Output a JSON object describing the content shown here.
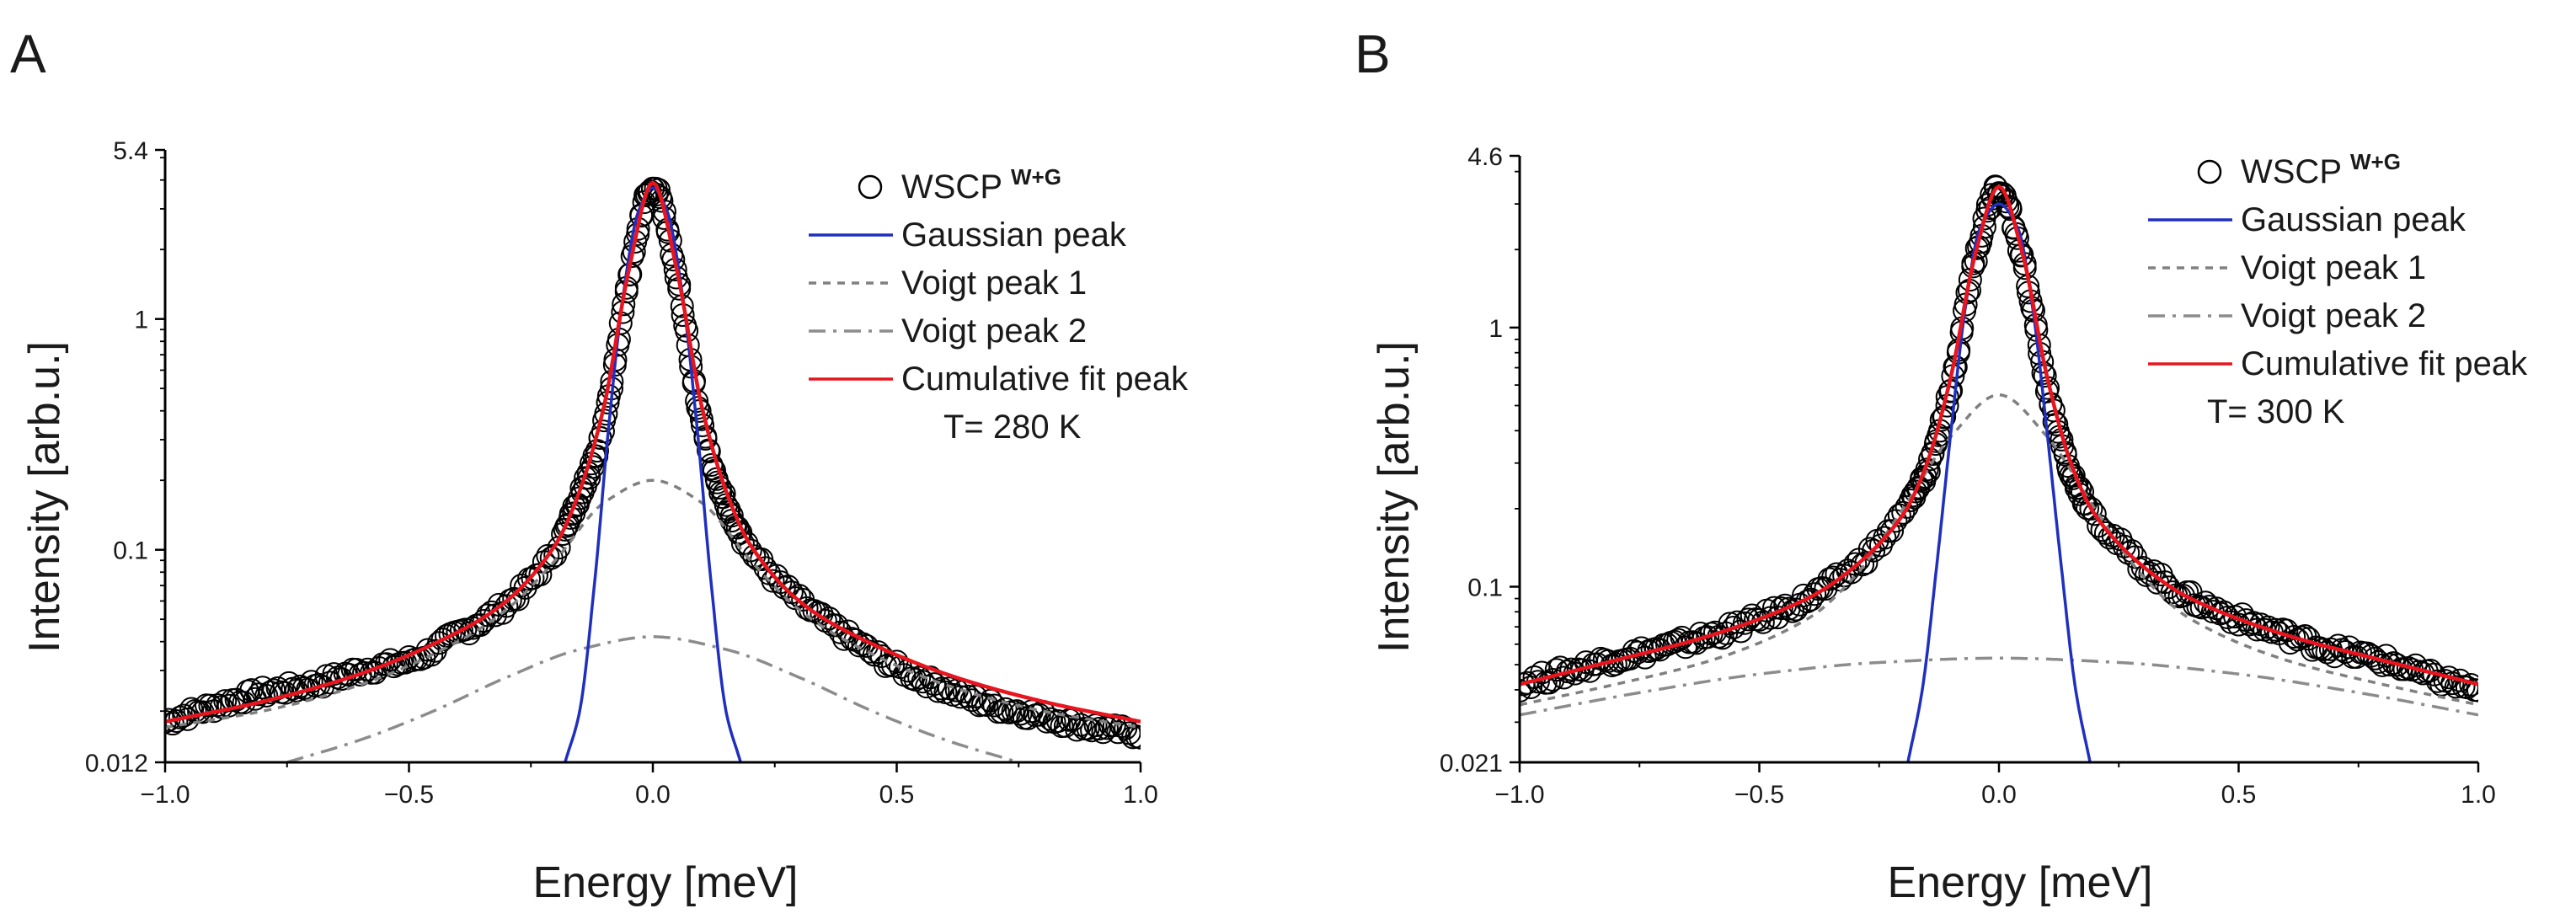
{
  "colors": {
    "data": "#000000",
    "gaussian": "#1f2fbf",
    "voigt1": "#808080",
    "voigt2": "#8c8c8c",
    "cumulative": "#e8141e"
  },
  "chart_data": [
    {
      "panel": "A",
      "type": "line",
      "title": "",
      "xlabel": "Energy [meV]",
      "ylabel": "Intensity [arb.u.]",
      "xlim": [
        -1.0,
        1.0
      ],
      "ylim": [
        0.012,
        5.4
      ],
      "yscale": "log",
      "xticks": [
        -1.0,
        -0.5,
        0.0,
        0.5,
        1.0
      ],
      "xtick_labels": [
        "−1.0",
        "−0.5",
        "0.0",
        "0.5",
        "1.0"
      ],
      "yticks": [
        0.012,
        0.1,
        1,
        5.4
      ],
      "ytick_labels": [
        "0.012",
        "0.1",
        "1",
        "5.4"
      ],
      "legend": {
        "placement": "top-right",
        "data_label": "WSCP",
        "data_sup": "W+G",
        "entries": [
          "Gaussian peak",
          "Voigt peak 1",
          "Voigt peak 2",
          "Cumulative fit peak"
        ],
        "note": "T= 280 K"
      },
      "series": [
        {
          "name": "WSCP W+G",
          "style": "markers",
          "x": [
            -1.0,
            -0.9,
            -0.8,
            -0.7,
            -0.6,
            -0.5,
            -0.4,
            -0.3,
            -0.2,
            -0.15,
            -0.1,
            -0.05,
            0.0,
            0.05,
            0.1,
            0.15,
            0.2,
            0.3,
            0.4,
            0.5,
            0.6,
            0.7,
            0.8,
            0.9,
            1.0
          ],
          "y": [
            0.018,
            0.021,
            0.024,
            0.026,
            0.03,
            0.033,
            0.043,
            0.058,
            0.1,
            0.17,
            0.35,
            1.5,
            3.8,
            1.5,
            0.35,
            0.16,
            0.1,
            0.06,
            0.042,
            0.031,
            0.025,
            0.021,
            0.019,
            0.017,
            0.016
          ]
        },
        {
          "name": "Gaussian peak",
          "style": "solid",
          "x": [
            -0.18,
            -0.15,
            -0.12,
            -0.09,
            -0.06,
            -0.03,
            0.0,
            0.03,
            0.06,
            0.09,
            0.12,
            0.15,
            0.18
          ],
          "y": [
            0.012,
            0.02,
            0.07,
            0.35,
            1.3,
            2.9,
            3.7,
            2.9,
            1.3,
            0.35,
            0.07,
            0.02,
            0.012
          ]
        },
        {
          "name": "Voigt peak 1",
          "style": "dotted",
          "x": [
            -1.0,
            -0.8,
            -0.6,
            -0.4,
            -0.3,
            -0.2,
            -0.1,
            0.0,
            0.1,
            0.2,
            0.3,
            0.4,
            0.6,
            0.8,
            1.0
          ],
          "y": [
            0.017,
            0.02,
            0.026,
            0.04,
            0.055,
            0.09,
            0.16,
            0.2,
            0.16,
            0.09,
            0.055,
            0.04,
            0.026,
            0.02,
            0.017
          ]
        },
        {
          "name": "Voigt peak 2",
          "style": "dashdot",
          "x": [
            -0.75,
            -0.6,
            -0.45,
            -0.3,
            -0.15,
            0.0,
            0.15,
            0.3,
            0.45,
            0.6,
            0.75
          ],
          "y": [
            0.012,
            0.015,
            0.02,
            0.028,
            0.037,
            0.042,
            0.037,
            0.028,
            0.02,
            0.015,
            0.012
          ]
        },
        {
          "name": "Cumulative fit peak",
          "style": "solid",
          "x": [
            -1.0,
            -0.8,
            -0.6,
            -0.4,
            -0.3,
            -0.2,
            -0.15,
            -0.1,
            -0.05,
            0.0,
            0.05,
            0.1,
            0.15,
            0.2,
            0.3,
            0.4,
            0.6,
            0.8,
            1.0
          ],
          "y": [
            0.018,
            0.022,
            0.029,
            0.044,
            0.06,
            0.105,
            0.18,
            0.42,
            1.6,
            3.9,
            1.6,
            0.42,
            0.18,
            0.105,
            0.06,
            0.044,
            0.029,
            0.022,
            0.018
          ]
        }
      ]
    },
    {
      "panel": "B",
      "type": "line",
      "title": "",
      "xlabel": "Energy [meV]",
      "ylabel": "Intensity [arb.u.]",
      "xlim": [
        -1.0,
        1.0
      ],
      "ylim": [
        0.021,
        4.6
      ],
      "yscale": "log",
      "xticks": [
        -1.0,
        -0.5,
        0.0,
        0.5,
        1.0
      ],
      "xtick_labels": [
        "−1.0",
        "−0.5",
        "0.0",
        "0.5",
        "1.0"
      ],
      "yticks": [
        0.021,
        0.1,
        1,
        4.6
      ],
      "ytick_labels": [
        "0.021",
        "0.1",
        "1",
        "4.6"
      ],
      "legend": {
        "placement": "top-right",
        "data_label": "WSCP",
        "data_sup": "W+G",
        "entries": [
          "Gaussian peak",
          "Voigt peak 1",
          "Voigt peak 2",
          "Cumulative fit peak"
        ],
        "note": "T= 300 K"
      },
      "series": [
        {
          "name": "WSCP W+G",
          "style": "markers",
          "x": [
            -1.0,
            -0.9,
            -0.8,
            -0.7,
            -0.6,
            -0.5,
            -0.4,
            -0.3,
            -0.2,
            -0.15,
            -0.1,
            -0.05,
            0.0,
            0.05,
            0.1,
            0.15,
            0.2,
            0.3,
            0.4,
            0.5,
            0.6,
            0.7,
            0.8,
            0.9,
            1.0
          ],
          "y": [
            0.042,
            0.047,
            0.053,
            0.058,
            0.065,
            0.075,
            0.09,
            0.12,
            0.19,
            0.28,
            0.6,
            1.8,
            3.4,
            1.8,
            0.6,
            0.28,
            0.19,
            0.12,
            0.09,
            0.075,
            0.065,
            0.057,
            0.052,
            0.045,
            0.04
          ]
        },
        {
          "name": "Gaussian peak",
          "style": "solid",
          "x": [
            -0.19,
            -0.16,
            -0.13,
            -0.1,
            -0.07,
            -0.04,
            0.0,
            0.04,
            0.07,
            0.1,
            0.13,
            0.16,
            0.19
          ],
          "y": [
            0.021,
            0.04,
            0.12,
            0.4,
            1.2,
            2.4,
            3.0,
            2.4,
            1.2,
            0.4,
            0.12,
            0.04,
            0.021
          ]
        },
        {
          "name": "Voigt peak 1",
          "style": "dotted",
          "x": [
            -1.0,
            -0.8,
            -0.6,
            -0.4,
            -0.3,
            -0.2,
            -0.1,
            0.0,
            0.1,
            0.2,
            0.3,
            0.4,
            0.6,
            0.8,
            1.0
          ],
          "y": [
            0.035,
            0.042,
            0.052,
            0.075,
            0.11,
            0.2,
            0.38,
            0.55,
            0.38,
            0.2,
            0.11,
            0.075,
            0.052,
            0.042,
            0.035
          ]
        },
        {
          "name": "Voigt peak 2",
          "style": "dashdot",
          "x": [
            -1.0,
            -0.75,
            -0.5,
            -0.25,
            0.0,
            0.25,
            0.5,
            0.75,
            1.0
          ],
          "y": [
            0.032,
            0.039,
            0.046,
            0.051,
            0.053,
            0.051,
            0.046,
            0.039,
            0.032
          ]
        },
        {
          "name": "Cumulative fit peak",
          "style": "solid",
          "x": [
            -1.0,
            -0.8,
            -0.6,
            -0.4,
            -0.3,
            -0.2,
            -0.15,
            -0.1,
            -0.05,
            0.0,
            0.05,
            0.1,
            0.15,
            0.2,
            0.3,
            0.4,
            0.6,
            0.8,
            1.0
          ],
          "y": [
            0.042,
            0.052,
            0.065,
            0.09,
            0.12,
            0.19,
            0.3,
            0.65,
            1.9,
            3.5,
            1.9,
            0.65,
            0.3,
            0.19,
            0.12,
            0.09,
            0.065,
            0.052,
            0.042
          ]
        }
      ]
    }
  ]
}
